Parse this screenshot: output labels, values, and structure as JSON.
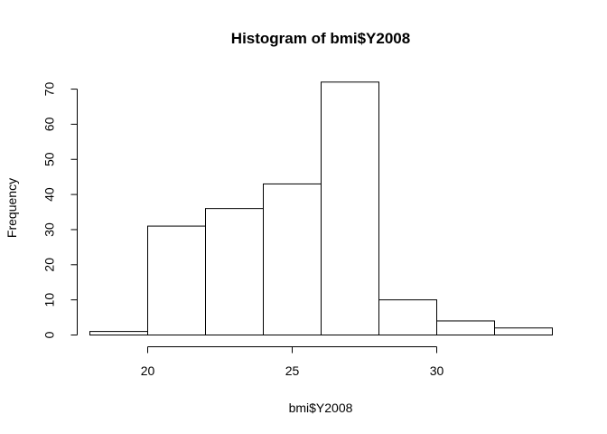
{
  "chart_data": {
    "type": "bar",
    "title": "Histogram of bmi$Y2008",
    "xlabel": "bmi$Y2008",
    "ylabel": "Frequency",
    "bins": [
      {
        "start": 18,
        "end": 20,
        "count": 1
      },
      {
        "start": 20,
        "end": 22,
        "count": 31
      },
      {
        "start": 22,
        "end": 24,
        "count": 36
      },
      {
        "start": 24,
        "end": 26,
        "count": 43
      },
      {
        "start": 26,
        "end": 28,
        "count": 72
      },
      {
        "start": 28,
        "end": 30,
        "count": 10
      },
      {
        "start": 30,
        "end": 32,
        "count": 4
      },
      {
        "start": 32,
        "end": 34,
        "count": 2
      }
    ],
    "xlim": [
      18,
      34
    ],
    "ylim": [
      0,
      70
    ],
    "x_ticks": [
      20,
      25,
      30
    ],
    "x_tick_labels": [
      "20",
      "25",
      "30"
    ],
    "y_ticks": [
      0,
      10,
      20,
      30,
      40,
      50,
      60,
      70
    ],
    "y_tick_labels": [
      "0",
      "10",
      "20",
      "30",
      "40",
      "50",
      "60",
      "70"
    ],
    "grid": false,
    "colors": {
      "bar_fill": "#ffffff",
      "bar_stroke": "#000000"
    }
  }
}
